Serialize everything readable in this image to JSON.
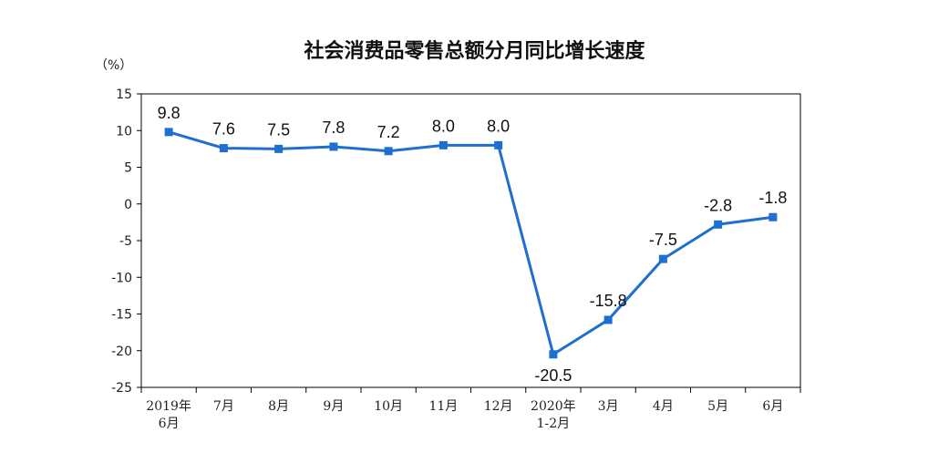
{
  "chart_data": {
    "type": "line",
    "title": "社会消费品零售总额分月同比增长速度",
    "ylabel": "（%）",
    "xlabel": "",
    "ylim": [
      -25,
      15
    ],
    "yticks": [
      15,
      10,
      5,
      0,
      -5,
      -10,
      -15,
      -20,
      -25
    ],
    "categories": [
      [
        "2019年",
        "6月"
      ],
      [
        "7月"
      ],
      [
        "8月"
      ],
      [
        "9月"
      ],
      [
        "10月"
      ],
      [
        "11月"
      ],
      [
        "12月"
      ],
      [
        "2020年",
        "1-2月"
      ],
      [
        "3月"
      ],
      [
        "4月"
      ],
      [
        "5月"
      ],
      [
        "6月"
      ]
    ],
    "values": [
      9.8,
      7.6,
      7.5,
      7.8,
      7.2,
      8.0,
      8.0,
      -20.5,
      -15.8,
      -7.5,
      -2.8,
      -1.8
    ],
    "value_labels": [
      "9.8",
      "7.6",
      "7.5",
      "7.8",
      "7.2",
      "8.0",
      "8.0",
      "-20.5",
      "-15.8",
      "-7.5",
      "-2.8",
      "-1.8"
    ],
    "label_below": [
      false,
      false,
      false,
      false,
      false,
      false,
      false,
      true,
      false,
      false,
      false,
      false
    ],
    "line_color": "#1f6fd1",
    "grid": false,
    "legend": "none"
  }
}
